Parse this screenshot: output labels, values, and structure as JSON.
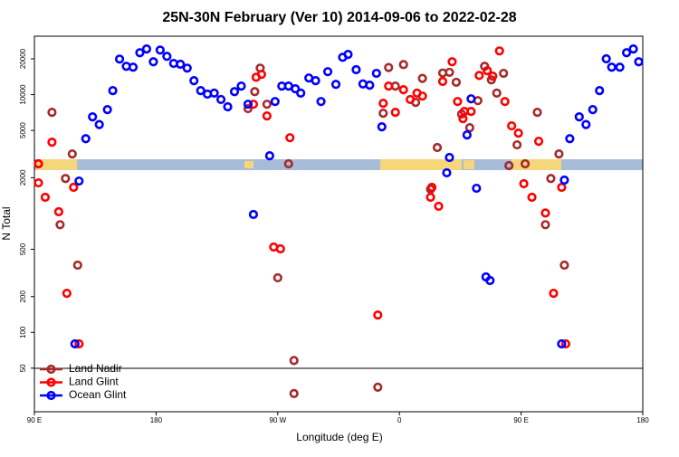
{
  "chart_data": {
    "type": "scatter",
    "title": "25N-30N February (Ver 10)   2014-09-06 to 2022-02-28",
    "x_label": "Longitude (deg E)",
    "y_label": "N Total",
    "xlim": [
      90,
      540
    ],
    "xticks": [
      {
        "value": 90,
        "label": "90 E"
      },
      180,
      {
        "value": 270,
        "label": "90 W"
      },
      {
        "value": 360,
        "label": "0"
      },
      {
        "value": 450,
        "label": "90 E"
      },
      {
        "value": 540,
        "label": "180"
      }
    ],
    "ylim": [
      21.5,
      31000
    ],
    "log_y": true,
    "yticks": [
      50,
      100,
      200,
      500,
      2000,
      5000,
      10000,
      20000
    ],
    "legend": "lower left",
    "series": [
      {
        "name": "Land Nadir",
        "color": "#a52a2a",
        "x": [
          93,
          103,
          109,
          113,
          118,
          122,
          248,
          253,
          257,
          262,
          270,
          278,
          282,
          282,
          348,
          352,
          357,
          363,
          372,
          377,
          383,
          388,
          392,
          397,
          402,
          406,
          412,
          418,
          423,
          428,
          432,
          437,
          441,
          447,
          453,
          462,
          468,
          472,
          478,
          482,
          344
        ],
        "values": [
          2620,
          7100,
          805,
          1970,
          3170,
          368,
          7620,
          10600,
          16700,
          8300,
          288,
          2620,
          58,
          30.6,
          6970,
          16900,
          11800,
          17900,
          8600,
          13700,
          1600,
          3590,
          15200,
          15400,
          12700,
          6860,
          5270,
          8900,
          17300,
          13300,
          10300,
          15100,
          2530,
          3780,
          2620,
          7100,
          805,
          1970,
          3170,
          368,
          34.6
        ]
      },
      {
        "name": "Land Glint",
        "color": "#ff0000",
        "x": [
          93,
          93,
          98,
          103,
          108,
          114,
          119,
          123,
          252,
          254,
          258,
          262,
          267,
          272,
          279,
          344,
          348,
          352,
          357,
          363,
          368,
          373,
          377,
          383,
          384,
          389,
          392,
          399,
          403,
          407,
          408,
          413,
          419,
          425,
          429,
          434,
          438,
          443,
          448,
          452,
          458,
          463,
          468,
          474,
          480,
          483
        ],
        "values": [
          2620,
          1810,
          1370,
          3980,
          1035,
          213,
          1660,
          80,
          8300,
          14000,
          14800,
          6620,
          522,
          504,
          4340,
          140,
          8460,
          11800,
          7100,
          11000,
          9100,
          10300,
          9720,
          1370,
          1660,
          1150,
          12900,
          18900,
          8750,
          6280,
          7220,
          7220,
          14500,
          15900,
          14300,
          23300,
          8750,
          5460,
          4740,
          1780,
          1370,
          4050,
          1010,
          213,
          1660,
          80
        ]
      },
      {
        "name": "Ocean Glint",
        "color": "#0000ff",
        "x": [
          120,
          123,
          128,
          133,
          138,
          144,
          148,
          153,
          158,
          163,
          168,
          173,
          178,
          183,
          188,
          193,
          198,
          203,
          208,
          213,
          218,
          223,
          228,
          233,
          238,
          243,
          248,
          252,
          264,
          268,
          273,
          278,
          283,
          287,
          293,
          298,
          302,
          307,
          313,
          318,
          322,
          328,
          333,
          338,
          343,
          347,
          395,
          397,
          410,
          413,
          417,
          424,
          427,
          486,
          493,
          498,
          503,
          508,
          513,
          517,
          523,
          528,
          533,
          537,
          480,
          482
        ],
        "values": [
          80,
          1875,
          4260,
          6500,
          5600,
          7480,
          10800,
          19900,
          17300,
          17000,
          22500,
          24200,
          18900,
          23700,
          21000,
          18300,
          18000,
          16700,
          13100,
          10800,
          10100,
          10300,
          9100,
          7900,
          10600,
          11800,
          8300,
          982,
          3060,
          8750,
          11800,
          11800,
          11200,
          10300,
          13800,
          13100,
          8750,
          15600,
          12200,
          20600,
          21800,
          16200,
          12300,
          12000,
          15100,
          5360,
          2200,
          2960,
          4580,
          9220,
          1630,
          293,
          273,
          4260,
          6500,
          5600,
          7480,
          10800,
          20000,
          17000,
          17000,
          22500,
          24200,
          18900,
          80,
          1910
        ]
      }
    ]
  }
}
